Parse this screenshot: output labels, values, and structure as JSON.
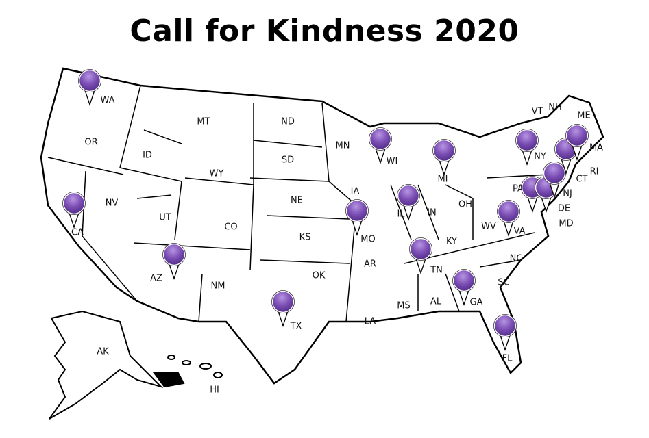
{
  "title": "Call for Kindness 2020",
  "colors": {
    "pin": "#7a4db3",
    "pin_highlight": "#b795e3",
    "outline": "#000000"
  },
  "state_labels": [
    "WA",
    "OR",
    "CA",
    "ID",
    "NV",
    "MT",
    "WY",
    "UT",
    "AZ",
    "CO",
    "NM",
    "ND",
    "SD",
    "NE",
    "KS",
    "OK",
    "TX",
    "MN",
    "IA",
    "MO",
    "AR",
    "LA",
    "WI",
    "IL",
    "MI",
    "IN",
    "OH",
    "KY",
    "TN",
    "MS",
    "AL",
    "GA",
    "FL",
    "SC",
    "NC",
    "VA",
    "WV",
    "PA",
    "NY",
    "VT",
    "NH",
    "ME",
    "MA",
    "RI",
    "CT",
    "NJ",
    "DE",
    "MD",
    "AK",
    "HI"
  ],
  "pinned_states": [
    "WA",
    "CA",
    "AZ",
    "TX",
    "WI",
    "MO",
    "IL",
    "MI",
    "TN",
    "GA",
    "FL",
    "VA",
    "PA",
    "NJ",
    "CT",
    "MA",
    "ME",
    "NY"
  ]
}
